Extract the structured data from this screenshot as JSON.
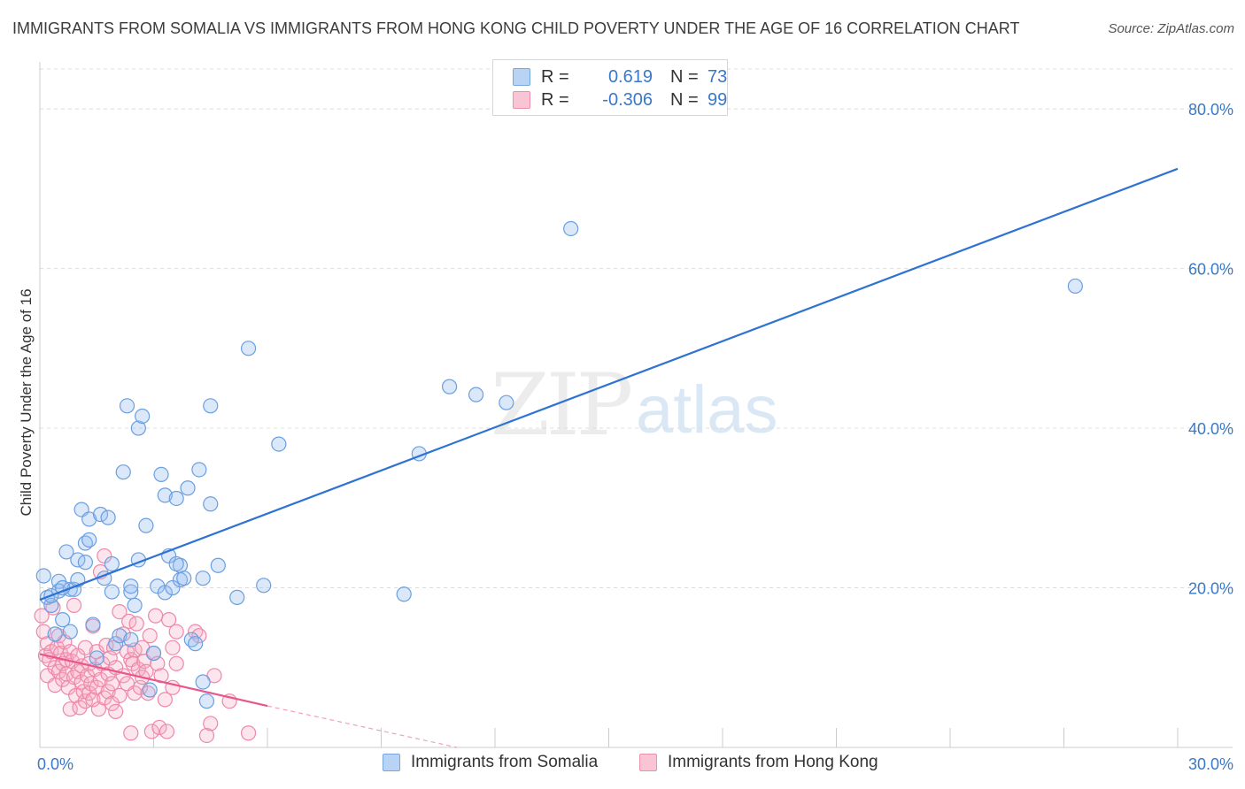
{
  "header": {
    "title": "IMMIGRANTS FROM SOMALIA VS IMMIGRANTS FROM HONG KONG CHILD POVERTY UNDER THE AGE OF 16 CORRELATION CHART",
    "source": "Source: ZipAtlas.com"
  },
  "watermark": {
    "zip": "ZIP",
    "atlas": "atlas"
  },
  "legend": {
    "rows": [
      {
        "r_label": "R =",
        "r_value": "0.619",
        "n_label": "N =",
        "n_value": "73",
        "color_fill": "#b9d3f5",
        "color_stroke": "#7aa6e0"
      },
      {
        "r_label": "R =",
        "r_value": "-0.306",
        "n_label": "N =",
        "n_value": "99",
        "color_fill": "#f9c4d4",
        "color_stroke": "#ec90ad"
      }
    ]
  },
  "bottom_legend": {
    "somalia": "Immigrants from Somalia",
    "hongkong": "Immigrants from Hong Kong"
  },
  "colors": {
    "blue_line": "#2e72d2",
    "blue_fill": "rgba(150,190,240,0.35)",
    "blue_stroke": "#6a9fe0",
    "pink_line": "#e8568a",
    "pink_fill": "rgba(247,170,195,0.30)",
    "pink_stroke": "#ee88a8",
    "grid": "#dcdcdc",
    "tick_text": "#3a78c8"
  },
  "chart_data": {
    "type": "scatter",
    "title": "IMMIGRANTS FROM SOMALIA VS IMMIGRANTS FROM HONG KONG CHILD POVERTY UNDER THE AGE OF 16 CORRELATION CHART",
    "xlabel": "",
    "ylabel": "Child Poverty Under the Age of 16",
    "xlim": [
      0,
      30
    ],
    "ylim": [
      0,
      85
    ],
    "x_tick_labels": [
      {
        "value": 0,
        "label": "0.0%"
      },
      {
        "value": 30,
        "label": "30.0%"
      }
    ],
    "y_tick_labels": [
      {
        "value": 20,
        "label": "20.0%"
      },
      {
        "value": 40,
        "label": "40.0%"
      },
      {
        "value": 60,
        "label": "60.0%"
      },
      {
        "value": 80,
        "label": "80.0%"
      }
    ],
    "x_grid": [
      0,
      3,
      6,
      9,
      12,
      15,
      18,
      21,
      24,
      27,
      30
    ],
    "y_grid": [
      20,
      40,
      60,
      80
    ],
    "series": [
      {
        "name": "Immigrants from Somalia",
        "trend": {
          "x": [
            0,
            30
          ],
          "y": [
            18.5,
            72.5
          ]
        },
        "points": [
          [
            0.1,
            21.5
          ],
          [
            0.2,
            18.8
          ],
          [
            0.3,
            17.8
          ],
          [
            0.4,
            14.2
          ],
          [
            0.5,
            20.8
          ],
          [
            0.5,
            19.6
          ],
          [
            0.6,
            16.0
          ],
          [
            0.7,
            24.5
          ],
          [
            0.8,
            14.5
          ],
          [
            0.8,
            19.8
          ],
          [
            0.9,
            19.8
          ],
          [
            1.0,
            23.5
          ],
          [
            1.1,
            29.8
          ],
          [
            1.2,
            25.6
          ],
          [
            1.2,
            23.2
          ],
          [
            1.3,
            26.0
          ],
          [
            1.3,
            28.6
          ],
          [
            1.4,
            15.4
          ],
          [
            1.5,
            11.2
          ],
          [
            1.6,
            29.2
          ],
          [
            1.7,
            21.2
          ],
          [
            1.8,
            28.8
          ],
          [
            1.9,
            19.5
          ],
          [
            2.0,
            13.0
          ],
          [
            2.1,
            14.0
          ],
          [
            2.2,
            34.5
          ],
          [
            2.3,
            42.8
          ],
          [
            2.4,
            19.5
          ],
          [
            2.4,
            20.2
          ],
          [
            2.5,
            17.8
          ],
          [
            2.6,
            40.0
          ],
          [
            2.6,
            23.5
          ],
          [
            2.7,
            41.5
          ],
          [
            2.8,
            27.8
          ],
          [
            2.9,
            7.2
          ],
          [
            3.0,
            11.8
          ],
          [
            3.1,
            20.2
          ],
          [
            3.2,
            34.2
          ],
          [
            3.3,
            19.4
          ],
          [
            3.3,
            31.6
          ],
          [
            3.4,
            24.0
          ],
          [
            3.5,
            20.0
          ],
          [
            3.6,
            31.2
          ],
          [
            3.7,
            21.0
          ],
          [
            3.7,
            22.8
          ],
          [
            3.8,
            21.2
          ],
          [
            3.9,
            32.5
          ],
          [
            4.0,
            13.5
          ],
          [
            4.1,
            13.0
          ],
          [
            4.2,
            34.8
          ],
          [
            4.3,
            21.2
          ],
          [
            4.3,
            8.2
          ],
          [
            4.4,
            5.8
          ],
          [
            4.5,
            42.8
          ],
          [
            4.5,
            30.5
          ],
          [
            4.7,
            22.8
          ],
          [
            5.2,
            18.8
          ],
          [
            5.5,
            50.0
          ],
          [
            5.9,
            20.3
          ],
          [
            6.3,
            38.0
          ],
          [
            9.6,
            19.2
          ],
          [
            10.0,
            36.8
          ],
          [
            10.8,
            45.2
          ],
          [
            11.5,
            44.2
          ],
          [
            12.3,
            43.2
          ],
          [
            14.0,
            65.0
          ],
          [
            27.3,
            57.8
          ],
          [
            0.3,
            19.0
          ],
          [
            0.6,
            20.0
          ],
          [
            1.9,
            23.0
          ],
          [
            2.4,
            13.5
          ],
          [
            3.6,
            23.0
          ],
          [
            1.0,
            21.0
          ]
        ]
      },
      {
        "name": "Immigrants from Hong Kong",
        "trend": {
          "x": [
            0,
            6
          ],
          "y": [
            11.7,
            5.2
          ]
        },
        "trend_dashed": {
          "x": [
            6,
            11
          ],
          "y": [
            5.2,
            -0.2
          ]
        },
        "points": [
          [
            0.05,
            16.5
          ],
          [
            0.1,
            14.5
          ],
          [
            0.15,
            11.5
          ],
          [
            0.2,
            13.0
          ],
          [
            0.2,
            9.0
          ],
          [
            0.25,
            11.0
          ],
          [
            0.3,
            12.0
          ],
          [
            0.35,
            17.5
          ],
          [
            0.4,
            10.0
          ],
          [
            0.4,
            7.8
          ],
          [
            0.45,
            12.5
          ],
          [
            0.5,
            9.5
          ],
          [
            0.5,
            14.0
          ],
          [
            0.55,
            11.8
          ],
          [
            0.6,
            8.5
          ],
          [
            0.6,
            10.5
          ],
          [
            0.65,
            13.2
          ],
          [
            0.7,
            9.2
          ],
          [
            0.7,
            11.0
          ],
          [
            0.75,
            7.5
          ],
          [
            0.8,
            12.0
          ],
          [
            0.8,
            4.8
          ],
          [
            0.85,
            10.8
          ],
          [
            0.9,
            8.8
          ],
          [
            0.9,
            17.8
          ],
          [
            0.95,
            6.5
          ],
          [
            1.0,
            9.5
          ],
          [
            1.0,
            11.5
          ],
          [
            1.05,
            5.0
          ],
          [
            1.1,
            8.2
          ],
          [
            1.1,
            10.2
          ],
          [
            1.15,
            7.0
          ],
          [
            1.2,
            12.5
          ],
          [
            1.2,
            5.8
          ],
          [
            1.25,
            9.0
          ],
          [
            1.3,
            6.8
          ],
          [
            1.3,
            10.5
          ],
          [
            1.35,
            8.0
          ],
          [
            1.4,
            6.0
          ],
          [
            1.4,
            15.2
          ],
          [
            1.45,
            9.8
          ],
          [
            1.5,
            7.5
          ],
          [
            1.5,
            12.0
          ],
          [
            1.55,
            4.8
          ],
          [
            1.6,
            8.5
          ],
          [
            1.6,
            22.0
          ],
          [
            1.65,
            10.5
          ],
          [
            1.7,
            6.2
          ],
          [
            1.7,
            24.0
          ],
          [
            1.75,
            12.8
          ],
          [
            1.8,
            9.2
          ],
          [
            1.8,
            7.0
          ],
          [
            1.85,
            11.2
          ],
          [
            1.9,
            5.5
          ],
          [
            1.9,
            8.0
          ],
          [
            1.95,
            12.5
          ],
          [
            2.0,
            4.5
          ],
          [
            2.0,
            10.0
          ],
          [
            2.1,
            6.5
          ],
          [
            2.1,
            17.0
          ],
          [
            2.2,
            9.0
          ],
          [
            2.2,
            14.2
          ],
          [
            2.3,
            12.0
          ],
          [
            2.3,
            8.0
          ],
          [
            2.35,
            15.8
          ],
          [
            2.4,
            1.8
          ],
          [
            2.4,
            11.0
          ],
          [
            2.45,
            10.5
          ],
          [
            2.5,
            6.8
          ],
          [
            2.5,
            12.2
          ],
          [
            2.55,
            15.5
          ],
          [
            2.6,
            9.8
          ],
          [
            2.65,
            7.5
          ],
          [
            2.7,
            12.5
          ],
          [
            2.7,
            8.8
          ],
          [
            2.75,
            10.8
          ],
          [
            2.8,
            9.5
          ],
          [
            2.85,
            6.8
          ],
          [
            2.9,
            14.0
          ],
          [
            2.95,
            2.0
          ],
          [
            3.0,
            11.8
          ],
          [
            3.05,
            16.5
          ],
          [
            3.1,
            10.5
          ],
          [
            3.15,
            2.5
          ],
          [
            3.2,
            9.0
          ],
          [
            3.3,
            6.0
          ],
          [
            3.35,
            2.0
          ],
          [
            3.4,
            16.0
          ],
          [
            3.5,
            7.5
          ],
          [
            3.5,
            12.5
          ],
          [
            3.6,
            14.5
          ],
          [
            3.6,
            10.5
          ],
          [
            4.1,
            14.5
          ],
          [
            4.2,
            14.0
          ],
          [
            4.4,
            1.5
          ],
          [
            4.5,
            3.0
          ],
          [
            4.6,
            9.0
          ],
          [
            5.0,
            5.8
          ],
          [
            5.5,
            1.8
          ]
        ]
      }
    ]
  }
}
